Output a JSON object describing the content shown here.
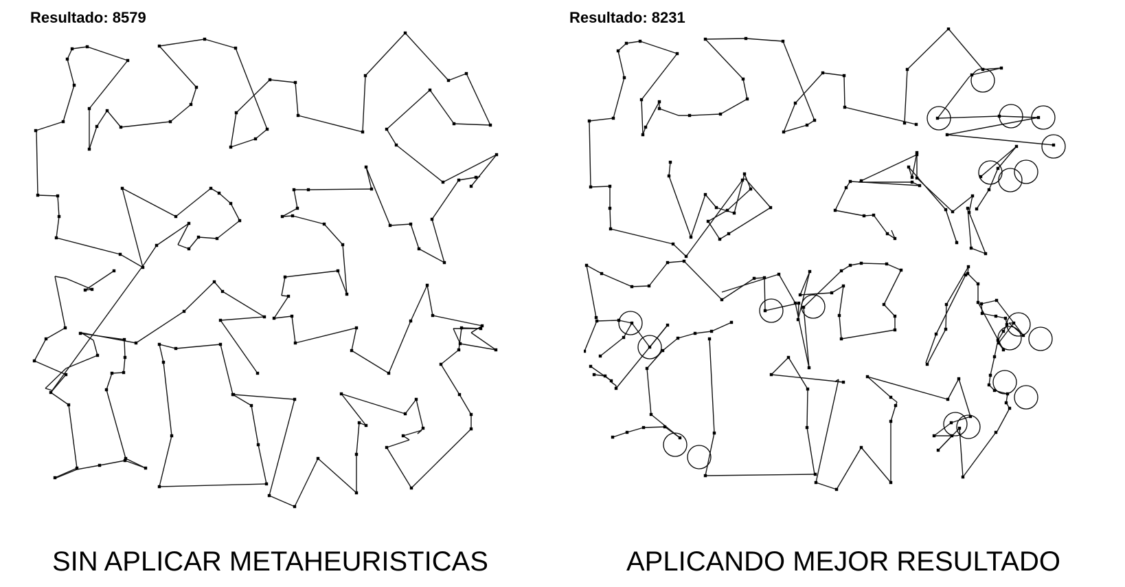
{
  "left": {
    "result": "Resultado: 8579",
    "caption": "SIN APLICAR METAHEURISTICAS"
  },
  "right": {
    "result": "Resultado: 8231",
    "caption": "APLICANDO MEJOR RESULTADO"
  }
}
